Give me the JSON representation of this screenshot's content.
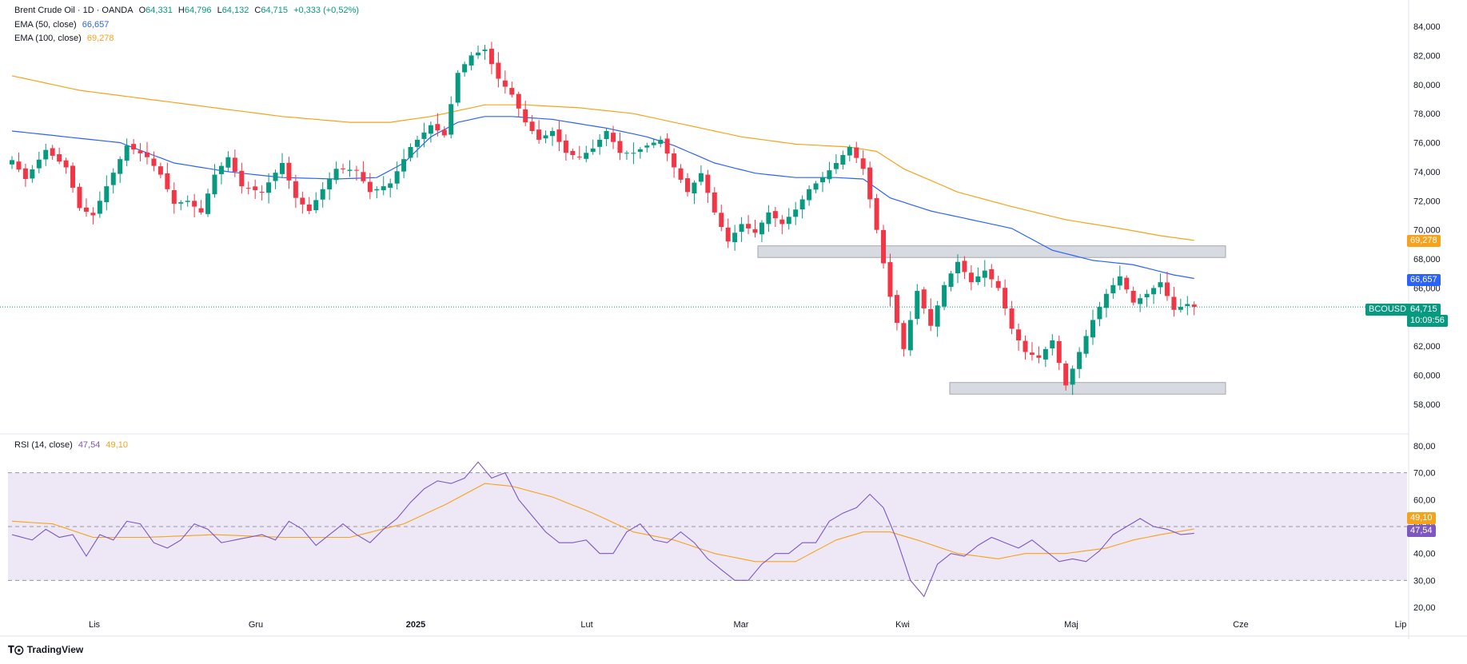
{
  "header": {
    "symbol": "Brent Crude Oil · 1D · OANDA",
    "open_label": "O",
    "open": "64,331",
    "high_label": "H",
    "high": "64,796",
    "low_label": "L",
    "low": "64,132",
    "close_label": "C",
    "close": "64,715",
    "change": "+0,333 (+0,52%)"
  },
  "indicators": {
    "ema50": {
      "label": "EMA (50, close)",
      "value": "66,657",
      "color": "#2962ff"
    },
    "ema100": {
      "label": "EMA (100, close)",
      "value": "69,278",
      "color": "#f7a21b"
    },
    "rsi": {
      "label": "RSI (14, close)",
      "value": "47,54",
      "ma_value": "49,10",
      "color": "#7e57c2",
      "ma_color": "#f7a21b"
    }
  },
  "price_labels": {
    "symbol_tag": "BCOUSD",
    "last": "64,715",
    "countdown": "10:09:56",
    "ema50": "66,657",
    "ema100": "69,278",
    "rsi": "47,54",
    "rsi_ma": "49,10"
  },
  "colors": {
    "up": "#089981",
    "down": "#f23645",
    "ema50": "#2962ff",
    "ema100": "#f7a21b",
    "rsi": "#7e57c2",
    "rsi_band": "#ede7f6",
    "zone": "#d1d4dc"
  },
  "branding": "TradingView",
  "chart_data": [
    {
      "type": "candlestick",
      "title": "Brent Crude Oil · 1D · OANDA",
      "ylim": [
        57,
        85
      ],
      "y_ticks": [
        "84,000",
        "82,000",
        "80,000",
        "78,000",
        "76,000",
        "74,000",
        "72,000",
        "70,000",
        "68,000",
        "66,000",
        "62,000",
        "60,000",
        "58,000"
      ],
      "x_ticks": [
        "Lis",
        "Gru",
        "2025",
        "Lut",
        "Mar",
        "Kwi",
        "Maj",
        "Cze",
        "Lip"
      ],
      "anchors": [
        [
          0,
          74.8
        ],
        [
          2,
          73.5
        ],
        [
          5,
          75.5
        ],
        [
          8,
          74.3
        ],
        [
          10,
          71.5
        ],
        [
          12,
          71.0
        ],
        [
          14,
          73.0
        ],
        [
          17,
          75.8
        ],
        [
          20,
          75.0
        ],
        [
          22,
          73.8
        ],
        [
          24,
          71.8
        ],
        [
          26,
          72.0
        ],
        [
          28,
          71.2
        ],
        [
          30,
          73.8
        ],
        [
          32,
          75.0
        ],
        [
          34,
          73.0
        ],
        [
          37,
          72.6
        ],
        [
          40,
          74.6
        ],
        [
          42,
          72.2
        ],
        [
          44,
          71.3
        ],
        [
          46,
          72.8
        ],
        [
          48,
          74.2
        ],
        [
          51,
          74.1
        ],
        [
          53,
          72.6
        ],
        [
          56,
          73.2
        ],
        [
          59,
          75.7
        ],
        [
          62,
          77.2
        ],
        [
          64,
          76.5
        ],
        [
          66,
          80.8
        ],
        [
          68,
          82.0
        ],
        [
          70,
          82.4
        ],
        [
          72,
          80.4
        ],
        [
          74,
          79.3
        ],
        [
          76,
          77.4
        ],
        [
          78,
          76.2
        ],
        [
          80,
          76.8
        ],
        [
          82,
          75.3
        ],
        [
          84,
          75.0
        ],
        [
          86,
          75.6
        ],
        [
          88,
          76.8
        ],
        [
          90,
          75.3
        ],
        [
          92,
          75.3
        ],
        [
          94,
          75.8
        ],
        [
          96,
          76.2
        ],
        [
          98,
          74.3
        ],
        [
          100,
          72.6
        ],
        [
          102,
          73.9
        ],
        [
          104,
          71.2
        ],
        [
          106,
          69.2
        ],
        [
          108,
          70.4
        ],
        [
          110,
          69.8
        ],
        [
          112,
          71.2
        ],
        [
          114,
          70.4
        ],
        [
          116,
          71.4
        ],
        [
          118,
          72.8
        ],
        [
          120,
          73.6
        ],
        [
          122,
          74.6
        ],
        [
          124,
          75.7
        ],
        [
          126,
          74.2
        ],
        [
          128,
          70.0
        ],
        [
          130,
          65.4
        ],
        [
          132,
          61.8
        ],
        [
          134,
          65.8
        ],
        [
          136,
          63.4
        ],
        [
          138,
          66.2
        ],
        [
          140,
          67.8
        ],
        [
          142,
          66.4
        ],
        [
          144,
          67.2
        ],
        [
          146,
          66.0
        ],
        [
          148,
          63.2
        ],
        [
          150,
          61.6
        ],
        [
          152,
          61.2
        ],
        [
          154,
          62.4
        ],
        [
          156,
          59.3
        ],
        [
          158,
          61.6
        ],
        [
          160,
          63.8
        ],
        [
          162,
          65.6
        ],
        [
          164,
          66.8
        ],
        [
          166,
          65.0
        ],
        [
          168,
          65.6
        ],
        [
          170,
          66.4
        ],
        [
          172,
          64.5
        ],
        [
          174,
          64.9
        ],
        [
          175,
          64.7
        ]
      ],
      "ema50_anchors": [
        [
          0,
          76.8
        ],
        [
          8,
          76.4
        ],
        [
          16,
          76.0
        ],
        [
          24,
          74.6
        ],
        [
          32,
          74.0
        ],
        [
          40,
          73.6
        ],
        [
          48,
          73.5
        ],
        [
          54,
          73.6
        ],
        [
          58,
          74.6
        ],
        [
          62,
          76.4
        ],
        [
          66,
          77.4
        ],
        [
          70,
          77.8
        ],
        [
          74,
          77.8
        ],
        [
          80,
          77.6
        ],
        [
          88,
          77.0
        ],
        [
          94,
          76.4
        ],
        [
          98,
          75.8
        ],
        [
          104,
          74.6
        ],
        [
          110,
          73.9
        ],
        [
          116,
          73.6
        ],
        [
          122,
          73.6
        ],
        [
          126,
          73.5
        ],
        [
          130,
          72.2
        ],
        [
          136,
          71.3
        ],
        [
          142,
          70.7
        ],
        [
          148,
          70.1
        ],
        [
          154,
          68.6
        ],
        [
          160,
          67.9
        ],
        [
          166,
          67.6
        ],
        [
          172,
          66.9
        ],
        [
          175,
          66.66
        ]
      ],
      "ema100_anchors": [
        [
          0,
          80.6
        ],
        [
          10,
          79.6
        ],
        [
          20,
          79.0
        ],
        [
          30,
          78.4
        ],
        [
          40,
          77.8
        ],
        [
          50,
          77.4
        ],
        [
          56,
          77.4
        ],
        [
          62,
          77.8
        ],
        [
          70,
          78.6
        ],
        [
          76,
          78.6
        ],
        [
          84,
          78.4
        ],
        [
          92,
          78.0
        ],
        [
          100,
          77.2
        ],
        [
          108,
          76.4
        ],
        [
          116,
          75.9
        ],
        [
          124,
          75.7
        ],
        [
          128,
          75.4
        ],
        [
          132,
          74.2
        ],
        [
          140,
          72.6
        ],
        [
          148,
          71.6
        ],
        [
          156,
          70.7
        ],
        [
          164,
          70.1
        ],
        [
          170,
          69.6
        ],
        [
          175,
          69.28
        ]
      ]
    },
    {
      "type": "line",
      "title": "RSI (14, close)",
      "ylim": [
        18,
        82
      ],
      "y_ticks": [
        "80,00",
        "70,00",
        "60,00",
        "50,00",
        "40,00",
        "30,00",
        "20,00"
      ],
      "bands": [
        30,
        50,
        70
      ],
      "rsi_anchors": [
        [
          0,
          47
        ],
        [
          3,
          45
        ],
        [
          5,
          49
        ],
        [
          7,
          46
        ],
        [
          9,
          47
        ],
        [
          11,
          39
        ],
        [
          13,
          47
        ],
        [
          15,
          45
        ],
        [
          17,
          52
        ],
        [
          19,
          51
        ],
        [
          21,
          44
        ],
        [
          23,
          42
        ],
        [
          25,
          45
        ],
        [
          27,
          51
        ],
        [
          29,
          49
        ],
        [
          31,
          44
        ],
        [
          33,
          45
        ],
        [
          35,
          46
        ],
        [
          37,
          47
        ],
        [
          39,
          45
        ],
        [
          41,
          52
        ],
        [
          43,
          49
        ],
        [
          45,
          43
        ],
        [
          47,
          47
        ],
        [
          49,
          51
        ],
        [
          51,
          47
        ],
        [
          53,
          44
        ],
        [
          55,
          49
        ],
        [
          57,
          53
        ],
        [
          59,
          59
        ],
        [
          61,
          64
        ],
        [
          63,
          67
        ],
        [
          65,
          66
        ],
        [
          67,
          68
        ],
        [
          69,
          74
        ],
        [
          71,
          68
        ],
        [
          73,
          70
        ],
        [
          75,
          60
        ],
        [
          77,
          54
        ],
        [
          79,
          48
        ],
        [
          81,
          44
        ],
        [
          83,
          44
        ],
        [
          85,
          45
        ],
        [
          87,
          40
        ],
        [
          89,
          40
        ],
        [
          91,
          48
        ],
        [
          93,
          51
        ],
        [
          95,
          45
        ],
        [
          97,
          44
        ],
        [
          99,
          48
        ],
        [
          101,
          44
        ],
        [
          103,
          38
        ],
        [
          105,
          34
        ],
        [
          107,
          30
        ],
        [
          109,
          30
        ],
        [
          111,
          36
        ],
        [
          113,
          40
        ],
        [
          115,
          40
        ],
        [
          117,
          44
        ],
        [
          119,
          44
        ],
        [
          121,
          52
        ],
        [
          123,
          55
        ],
        [
          125,
          57
        ],
        [
          127,
          62
        ],
        [
          129,
          57
        ],
        [
          131,
          45
        ],
        [
          133,
          30
        ],
        [
          135,
          24
        ],
        [
          137,
          36
        ],
        [
          139,
          40
        ],
        [
          141,
          39
        ],
        [
          143,
          43
        ],
        [
          145,
          46
        ],
        [
          147,
          44
        ],
        [
          149,
          42
        ],
        [
          151,
          45
        ],
        [
          153,
          41
        ],
        [
          155,
          37
        ],
        [
          157,
          38
        ],
        [
          159,
          37
        ],
        [
          161,
          41
        ],
        [
          163,
          47
        ],
        [
          165,
          50
        ],
        [
          167,
          53
        ],
        [
          169,
          50
        ],
        [
          171,
          49
        ],
        [
          173,
          47
        ],
        [
          175,
          47.5
        ]
      ],
      "rsi_ma_anchors": [
        [
          0,
          52
        ],
        [
          6,
          51
        ],
        [
          12,
          46
        ],
        [
          20,
          46
        ],
        [
          30,
          47
        ],
        [
          40,
          46
        ],
        [
          50,
          46
        ],
        [
          58,
          51
        ],
        [
          64,
          58
        ],
        [
          70,
          66
        ],
        [
          74,
          65
        ],
        [
          80,
          61
        ],
        [
          86,
          55
        ],
        [
          92,
          48
        ],
        [
          98,
          45
        ],
        [
          104,
          40
        ],
        [
          110,
          37
        ],
        [
          116,
          37
        ],
        [
          122,
          45
        ],
        [
          126,
          48
        ],
        [
          130,
          48
        ],
        [
          134,
          45
        ],
        [
          140,
          40
        ],
        [
          146,
          38
        ],
        [
          150,
          40
        ],
        [
          156,
          40
        ],
        [
          162,
          42
        ],
        [
          166,
          45
        ],
        [
          170,
          47
        ],
        [
          175,
          49.1
        ]
      ]
    }
  ]
}
